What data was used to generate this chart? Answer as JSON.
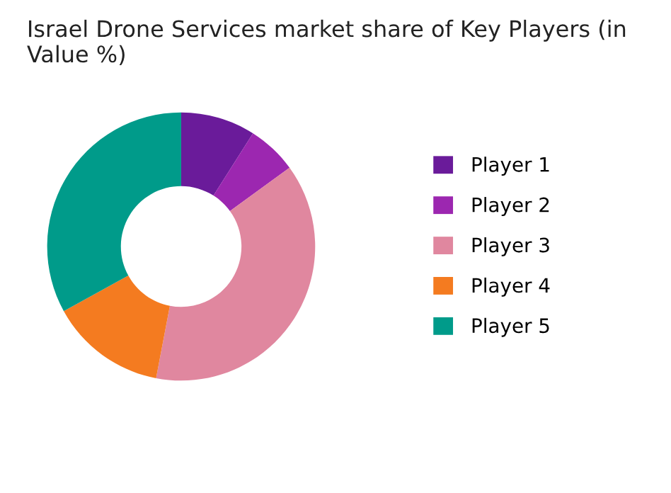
{
  "chart_data": {
    "type": "donut",
    "title": "Israel Drone Services market share of Key Players (in Value %)",
    "categories": [
      "Player 1",
      "Player 2",
      "Player 3",
      "Player 4",
      "Player 5"
    ],
    "values": [
      9,
      6,
      38,
      14,
      33
    ],
    "colors": [
      "#6a1b9a",
      "#9c27b0",
      "#e0879f",
      "#f47b20",
      "#009b8a"
    ],
    "legend": "right"
  }
}
